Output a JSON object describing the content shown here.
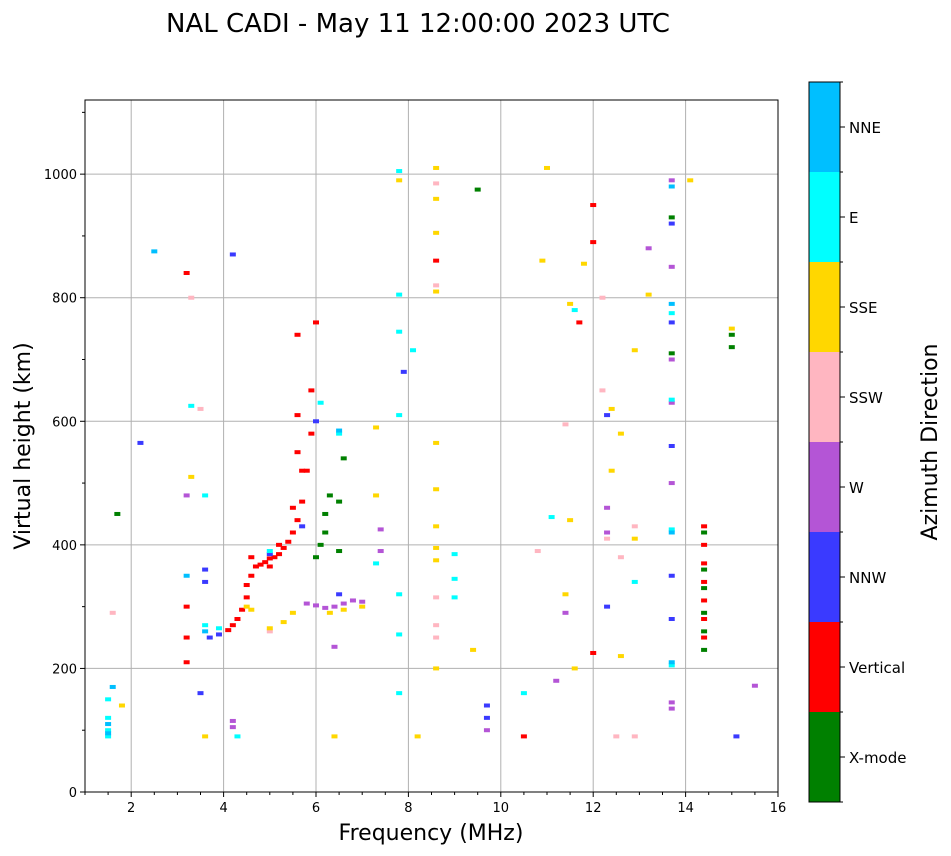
{
  "chart_data": {
    "type": "scatter",
    "title": "NAL CADI - May 11 12:00:00 2023 UTC",
    "xlabel": "Frequency (MHz)",
    "ylabel": "Virtual height (km)",
    "xlim": [
      1,
      16
    ],
    "ylim": [
      0,
      1120
    ],
    "xticks": [
      2,
      4,
      6,
      8,
      10,
      12,
      14,
      16
    ],
    "yticks": [
      0,
      200,
      400,
      600,
      800,
      1000
    ],
    "grid": true,
    "colorbar": {
      "title": "Azimuth Direction",
      "categories": [
        {
          "label": "X-mode",
          "color": "#008000"
        },
        {
          "label": "Vertical",
          "color": "#ff0000"
        },
        {
          "label": "NNW",
          "color": "#3a3aff"
        },
        {
          "label": "W",
          "color": "#b455d6"
        },
        {
          "label": "SSW",
          "color": "#ffb6c1"
        },
        {
          "label": "SSE",
          "color": "#ffd700"
        },
        {
          "label": "E",
          "color": "#00ffff"
        },
        {
          "label": "NNE",
          "color": "#00bfff"
        }
      ]
    },
    "series": [
      {
        "name": "Vertical",
        "points": [
          [
            4.1,
            262
          ],
          [
            4.2,
            270
          ],
          [
            4.3,
            280
          ],
          [
            4.4,
            295
          ],
          [
            4.5,
            315
          ],
          [
            4.5,
            335
          ],
          [
            4.6,
            350
          ],
          [
            4.7,
            365
          ],
          [
            4.8,
            368
          ],
          [
            4.9,
            372
          ],
          [
            5.0,
            378
          ],
          [
            5.1,
            380
          ],
          [
            5.2,
            385
          ],
          [
            5.3,
            395
          ],
          [
            5.4,
            405
          ],
          [
            5.5,
            420
          ],
          [
            5.6,
            440
          ],
          [
            5.7,
            470
          ],
          [
            5.8,
            520
          ],
          [
            5.9,
            580
          ],
          [
            5.9,
            650
          ],
          [
            6.0,
            760
          ],
          [
            4.6,
            380
          ],
          [
            5.0,
            365
          ],
          [
            5.2,
            400
          ],
          [
            5.5,
            460
          ],
          [
            5.6,
            550
          ],
          [
            5.6,
            610
          ],
          [
            5.7,
            520
          ],
          [
            5.6,
            740
          ],
          [
            3.2,
            300
          ],
          [
            3.2,
            250
          ],
          [
            3.2,
            210
          ],
          [
            12.0,
            950
          ],
          [
            12.0,
            890
          ],
          [
            11.7,
            760
          ],
          [
            12.0,
            225
          ],
          [
            10.5,
            90
          ],
          [
            14.4,
            430
          ],
          [
            14.4,
            400
          ],
          [
            14.4,
            370
          ],
          [
            14.4,
            340
          ],
          [
            14.4,
            310
          ],
          [
            14.4,
            280
          ],
          [
            14.4,
            250
          ],
          [
            8.6,
            860
          ],
          [
            3.2,
            840
          ]
        ]
      },
      {
        "name": "X-mode",
        "points": [
          [
            6.0,
            380
          ],
          [
            6.1,
            400
          ],
          [
            6.2,
            420
          ],
          [
            6.2,
            450
          ],
          [
            6.3,
            480
          ],
          [
            6.5,
            470
          ],
          [
            6.6,
            540
          ],
          [
            6.5,
            390
          ],
          [
            14.4,
            420
          ],
          [
            14.4,
            360
          ],
          [
            14.4,
            330
          ],
          [
            14.4,
            290
          ],
          [
            14.4,
            260
          ],
          [
            14.4,
            230
          ],
          [
            13.7,
            930
          ],
          [
            13.7,
            710
          ],
          [
            15.0,
            720
          ],
          [
            15.0,
            740
          ],
          [
            9.5,
            975
          ],
          [
            1.7,
            450
          ]
        ]
      },
      {
        "name": "NNW",
        "points": [
          [
            3.5,
            160
          ],
          [
            3.6,
            340
          ],
          [
            3.6,
            360
          ],
          [
            3.7,
            250
          ],
          [
            3.9,
            255
          ],
          [
            4.2,
            870
          ],
          [
            5.0,
            385
          ],
          [
            5.7,
            430
          ],
          [
            6.0,
            600
          ],
          [
            6.5,
            320
          ],
          [
            9.7,
            140
          ],
          [
            9.7,
            120
          ],
          [
            12.3,
            300
          ],
          [
            12.3,
            610
          ],
          [
            13.7,
            560
          ],
          [
            13.7,
            350
          ],
          [
            13.7,
            280
          ],
          [
            13.7,
            760
          ],
          [
            13.7,
            920
          ],
          [
            15.1,
            90
          ],
          [
            2.2,
            565
          ],
          [
            7.9,
            680
          ]
        ]
      },
      {
        "name": "W",
        "points": [
          [
            5.8,
            305
          ],
          [
            6.0,
            302
          ],
          [
            6.2,
            298
          ],
          [
            6.4,
            300
          ],
          [
            6.6,
            305
          ],
          [
            6.8,
            310
          ],
          [
            7.0,
            308
          ],
          [
            6.4,
            235
          ],
          [
            7.4,
            425
          ],
          [
            7.4,
            390
          ],
          [
            11.4,
            290
          ],
          [
            11.2,
            180
          ],
          [
            12.3,
            420
          ],
          [
            12.3,
            460
          ],
          [
            13.7,
            990
          ],
          [
            13.7,
            850
          ],
          [
            13.7,
            700
          ],
          [
            13.7,
            630
          ],
          [
            13.7,
            500
          ],
          [
            13.7,
            145
          ],
          [
            13.7,
            135
          ],
          [
            15.5,
            172
          ],
          [
            9.7,
            100
          ],
          [
            4.2,
            105
          ],
          [
            4.2,
            115
          ],
          [
            3.2,
            480
          ],
          [
            13.2,
            880
          ]
        ]
      },
      {
        "name": "SSW",
        "points": [
          [
            8.6,
            985
          ],
          [
            8.6,
            820
          ],
          [
            8.6,
            315
          ],
          [
            8.6,
            270
          ],
          [
            8.6,
            250
          ],
          [
            11.4,
            595
          ],
          [
            12.2,
            800
          ],
          [
            12.2,
            650
          ],
          [
            12.3,
            410
          ],
          [
            12.6,
            380
          ],
          [
            12.9,
            430
          ],
          [
            12.5,
            90
          ],
          [
            12.9,
            90
          ],
          [
            10.8,
            390
          ],
          [
            1.6,
            290
          ],
          [
            3.3,
            800
          ],
          [
            3.5,
            620
          ],
          [
            5.0,
            260
          ]
        ]
      },
      {
        "name": "SSE",
        "points": [
          [
            4.5,
            300
          ],
          [
            4.6,
            295
          ],
          [
            5.0,
            265
          ],
          [
            5.3,
            275
          ],
          [
            5.5,
            290
          ],
          [
            6.3,
            290
          ],
          [
            6.6,
            295
          ],
          [
            7.0,
            300
          ],
          [
            8.6,
            1010
          ],
          [
            8.6,
            960
          ],
          [
            8.6,
            905
          ],
          [
            8.6,
            810
          ],
          [
            8.6,
            565
          ],
          [
            8.6,
            490
          ],
          [
            8.6,
            430
          ],
          [
            8.6,
            395
          ],
          [
            8.6,
            375
          ],
          [
            8.6,
            200
          ],
          [
            9.4,
            230
          ],
          [
            10.9,
            860
          ],
          [
            11.0,
            1010
          ],
          [
            11.5,
            790
          ],
          [
            11.5,
            440
          ],
          [
            11.4,
            320
          ],
          [
            11.6,
            200
          ],
          [
            11.8,
            855
          ],
          [
            12.4,
            620
          ],
          [
            12.4,
            520
          ],
          [
            12.6,
            580
          ],
          [
            12.6,
            220
          ],
          [
            12.9,
            715
          ],
          [
            12.9,
            410
          ],
          [
            13.2,
            805
          ],
          [
            14.1,
            990
          ],
          [
            15.0,
            750
          ],
          [
            7.3,
            590
          ],
          [
            7.3,
            480
          ],
          [
            7.8,
            990
          ],
          [
            8.2,
            90
          ],
          [
            6.4,
            90
          ],
          [
            3.6,
            90
          ],
          [
            3.3,
            510
          ],
          [
            1.8,
            140
          ]
        ]
      },
      {
        "name": "E",
        "points": [
          [
            1.5,
            100
          ],
          [
            1.5,
            120
          ],
          [
            1.5,
            150
          ],
          [
            1.5,
            90
          ],
          [
            3.3,
            625
          ],
          [
            3.6,
            270
          ],
          [
            3.6,
            480
          ],
          [
            3.9,
            265
          ],
          [
            4.3,
            90
          ],
          [
            5.0,
            390
          ],
          [
            6.1,
            630
          ],
          [
            6.5,
            580
          ],
          [
            7.8,
            1005
          ],
          [
            7.8,
            805
          ],
          [
            7.8,
            745
          ],
          [
            7.8,
            610
          ],
          [
            7.8,
            320
          ],
          [
            7.8,
            160
          ],
          [
            7.8,
            255
          ],
          [
            8.1,
            715
          ],
          [
            9.0,
            385
          ],
          [
            9.0,
            345
          ],
          [
            9.0,
            315
          ],
          [
            10.5,
            160
          ],
          [
            11.1,
            445
          ],
          [
            11.6,
            780
          ],
          [
            12.9,
            340
          ],
          [
            13.7,
            775
          ],
          [
            13.7,
            635
          ],
          [
            13.7,
            425
          ],
          [
            13.7,
            205
          ],
          [
            7.3,
            370
          ]
        ]
      },
      {
        "name": "NNE",
        "points": [
          [
            1.5,
            110
          ],
          [
            1.5,
            95
          ],
          [
            1.6,
            170
          ],
          [
            2.5,
            875
          ],
          [
            3.2,
            350
          ],
          [
            3.6,
            260
          ],
          [
            6.5,
            585
          ],
          [
            13.7,
            790
          ],
          [
            13.7,
            420
          ],
          [
            13.7,
            210
          ],
          [
            13.7,
            980
          ]
        ]
      }
    ]
  }
}
